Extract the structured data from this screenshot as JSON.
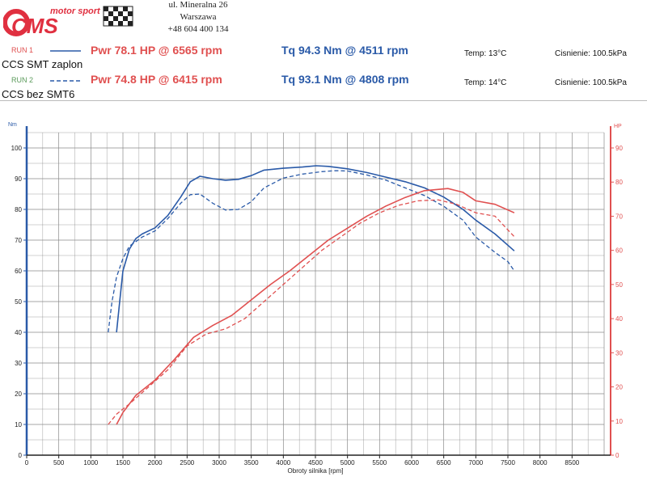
{
  "header": {
    "brand_text": "motor sport",
    "brand_logo": "CMS",
    "address_line1": "ul. Mineralna 26",
    "address_line2": "Warszawa",
    "phone": "+48 604 400 134"
  },
  "runs": [
    {
      "tag": "RUN 1",
      "line_style": "solid",
      "power_text": "Pwr 78.1 HP @ 6565 rpm",
      "torque_text": "Tq 94.3 Nm @ 4511 rpm",
      "temp_text": "Temp: 13°C",
      "pressure_text": "Cisnienie: 100.5kPa",
      "description": "CCS SMT zaplon",
      "tag_color": "#e05050"
    },
    {
      "tag": "RUN 2",
      "line_style": "dashed",
      "power_text": "Pwr 74.8 HP @ 6415 rpm",
      "torque_text": "Tq 93.1 Nm @ 4808 rpm",
      "temp_text": "Temp: 14°C",
      "pressure_text": "Cisnienie: 100.5kPa",
      "description": "CCS bez SMT6",
      "tag_color": "#5a9a5a"
    }
  ],
  "colors": {
    "torque": "#2a5aa8",
    "power": "#e05050",
    "grid": "#8a8a8a",
    "brand_red": "#e03040"
  },
  "chart_data": {
    "type": "line",
    "xlabel": "Obroty silnika [rpm]",
    "ylabel_left": "Nm",
    "ylabel_right": "HP",
    "xlim": [
      0,
      9000
    ],
    "ylim_left": [
      0,
      105
    ],
    "ylim_right": [
      0,
      94.5
    ],
    "x_ticks": [
      0,
      500,
      1000,
      1500,
      2000,
      2500,
      3000,
      3500,
      4000,
      4500,
      5000,
      5500,
      6000,
      6500,
      7000,
      7500,
      8000,
      8500
    ],
    "y_ticks_left": [
      0,
      10,
      20,
      30,
      40,
      50,
      60,
      70,
      80,
      90,
      100
    ],
    "y_ticks_right": [
      0,
      10,
      20,
      30,
      40,
      50,
      60,
      70,
      80,
      90
    ],
    "grid": true,
    "series": [
      {
        "name": "RUN 1",
        "quantity": "torque",
        "axis": "left",
        "line": "solid",
        "points": [
          [
            1400,
            40
          ],
          [
            1450,
            50
          ],
          [
            1500,
            60
          ],
          [
            1600,
            67
          ],
          [
            1700,
            70.5
          ],
          [
            1800,
            72
          ],
          [
            2000,
            74
          ],
          [
            2200,
            78
          ],
          [
            2400,
            84
          ],
          [
            2550,
            89
          ],
          [
            2700,
            90.8
          ],
          [
            2900,
            90
          ],
          [
            3100,
            89.5
          ],
          [
            3300,
            89.8
          ],
          [
            3500,
            91
          ],
          [
            3700,
            92.8
          ],
          [
            4000,
            93.4
          ],
          [
            4300,
            93.8
          ],
          [
            4511,
            94.2
          ],
          [
            4700,
            94
          ],
          [
            5000,
            93.2
          ],
          [
            5300,
            92
          ],
          [
            5600,
            90.5
          ],
          [
            5900,
            89
          ],
          [
            6200,
            87
          ],
          [
            6500,
            84
          ],
          [
            6800,
            80
          ],
          [
            7000,
            76.5
          ],
          [
            7300,
            72
          ],
          [
            7600,
            66.5
          ]
        ]
      },
      {
        "name": "RUN 2",
        "quantity": "torque",
        "axis": "left",
        "line": "dashed",
        "points": [
          [
            1270,
            40
          ],
          [
            1330,
            50
          ],
          [
            1400,
            58
          ],
          [
            1500,
            64
          ],
          [
            1600,
            68
          ],
          [
            1800,
            71
          ],
          [
            2000,
            73
          ],
          [
            2200,
            77
          ],
          [
            2400,
            82
          ],
          [
            2550,
            84.8
          ],
          [
            2700,
            85
          ],
          [
            2900,
            82
          ],
          [
            3100,
            79.8
          ],
          [
            3300,
            80
          ],
          [
            3500,
            82.5
          ],
          [
            3700,
            87
          ],
          [
            4000,
            90.2
          ],
          [
            4300,
            91.5
          ],
          [
            4600,
            92.3
          ],
          [
            4808,
            92.6
          ],
          [
            5000,
            92.5
          ],
          [
            5300,
            91.2
          ],
          [
            5600,
            89.5
          ],
          [
            5900,
            87
          ],
          [
            6200,
            84.5
          ],
          [
            6500,
            81
          ],
          [
            6800,
            76.5
          ],
          [
            7000,
            71
          ],
          [
            7300,
            66
          ],
          [
            7500,
            63
          ],
          [
            7600,
            60
          ]
        ]
      },
      {
        "name": "RUN 1",
        "quantity": "power",
        "axis": "right",
        "line": "solid",
        "points": [
          [
            1400,
            9
          ],
          [
            1500,
            12.5
          ],
          [
            1700,
            17.5
          ],
          [
            2000,
            22
          ],
          [
            2300,
            28
          ],
          [
            2600,
            34.5
          ],
          [
            2900,
            38
          ],
          [
            3200,
            41
          ],
          [
            3500,
            45.5
          ],
          [
            3800,
            50
          ],
          [
            4100,
            54
          ],
          [
            4400,
            58.5
          ],
          [
            4700,
            63
          ],
          [
            5000,
            66.5
          ],
          [
            5300,
            70
          ],
          [
            5600,
            73
          ],
          [
            5900,
            75.5
          ],
          [
            6200,
            77.5
          ],
          [
            6565,
            78.1
          ],
          [
            6800,
            77
          ],
          [
            7000,
            74.5
          ],
          [
            7300,
            73.5
          ],
          [
            7600,
            71
          ]
        ]
      },
      {
        "name": "RUN 2",
        "quantity": "power",
        "axis": "right",
        "line": "dashed",
        "points": [
          [
            1270,
            9
          ],
          [
            1400,
            12
          ],
          [
            1600,
            15
          ],
          [
            1900,
            20
          ],
          [
            2200,
            25
          ],
          [
            2500,
            32
          ],
          [
            2800,
            35.5
          ],
          [
            3100,
            37
          ],
          [
            3400,
            40
          ],
          [
            3700,
            45
          ],
          [
            4000,
            50
          ],
          [
            4300,
            55
          ],
          [
            4600,
            60
          ],
          [
            4900,
            64
          ],
          [
            5200,
            68
          ],
          [
            5500,
            71
          ],
          [
            5800,
            73.2
          ],
          [
            6100,
            74.5
          ],
          [
            6415,
            74.8
          ],
          [
            6700,
            73.5
          ],
          [
            7000,
            71
          ],
          [
            7300,
            70
          ],
          [
            7600,
            64
          ]
        ]
      }
    ]
  }
}
